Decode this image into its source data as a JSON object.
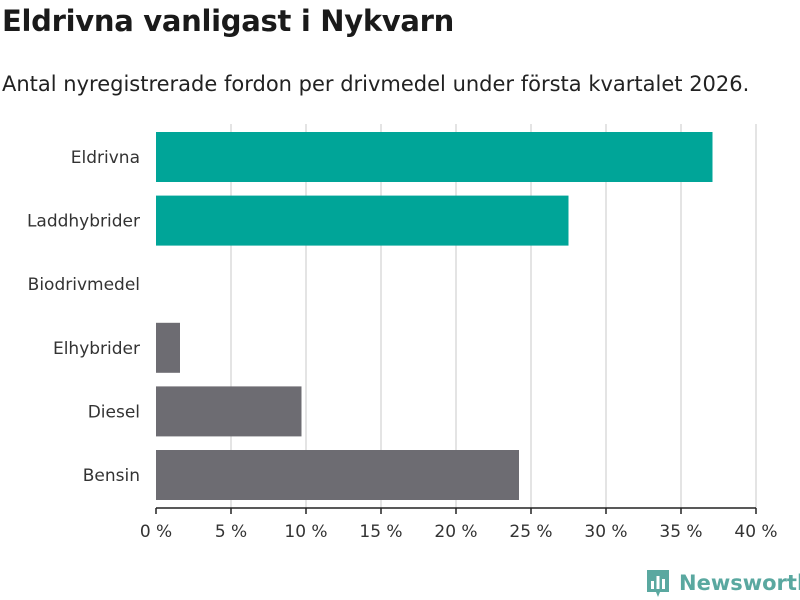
{
  "title": "Eldrivna vanligast i Nykvarn",
  "subtitle": "Antal nyregistrerade fordon per drivmedel under första kvartalet 2026.",
  "brand": {
    "name": "Newsworthy",
    "color": "#5aa8a0",
    "icon": "bar-chart-icon"
  },
  "colors": {
    "highlight": "#00a598",
    "default": "#6d6c72"
  },
  "chart_data": {
    "type": "bar",
    "orientation": "horizontal",
    "categories": [
      "Eldrivna",
      "Laddhybrider",
      "Biodrivmedel",
      "Elhybrider",
      "Diesel",
      "Bensin"
    ],
    "values": [
      37.1,
      27.5,
      0,
      1.6,
      9.7,
      24.2
    ],
    "highlighted": [
      true,
      true,
      false,
      false,
      false,
      false
    ],
    "xlim": [
      0,
      40
    ],
    "xticks": [
      0,
      5,
      10,
      15,
      20,
      25,
      30,
      35,
      40
    ],
    "xtick_labels": [
      "0 %",
      "5 %",
      "10 %",
      "15 %",
      "20 %",
      "25 %",
      "30 %",
      "35 %",
      "40 %"
    ],
    "xlabel": "",
    "ylabel": "",
    "grid": true
  }
}
